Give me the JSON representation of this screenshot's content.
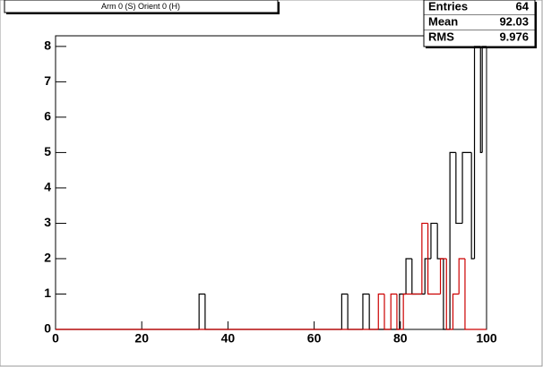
{
  "chart_data": {
    "type": "histogram",
    "title": "Arm 0 (S) Orient 0 (H)",
    "stats": {
      "labels": [
        "Entries",
        "Mean",
        "RMS"
      ],
      "values": [
        64,
        92.03,
        9.976
      ]
    },
    "xlim": [
      0,
      100
    ],
    "ylim": [
      0,
      8.3
    ],
    "xticks": [
      0,
      20,
      40,
      60,
      80,
      100
    ],
    "yticks": [
      0,
      1,
      2,
      3,
      4,
      5,
      6,
      7,
      8
    ],
    "series": [
      {
        "color": "#000000",
        "bins": [
          0,
          33.3,
          34.7,
          66.4,
          67.8,
          71.3,
          72.8,
          79.8,
          81.3,
          82.7,
          85.7,
          87.1,
          88.6,
          90.0,
          91.5,
          92.9,
          94.4,
          96.5,
          97.2,
          98.6,
          99.0,
          100
        ],
        "values": [
          0,
          1,
          0,
          1,
          0,
          1,
          0,
          1,
          2,
          1,
          2,
          3,
          2,
          0,
          5,
          3,
          5,
          2,
          8,
          5,
          8
        ]
      },
      {
        "color": "#cc0000",
        "bins": [
          0,
          74.9,
          76.3,
          77.8,
          79.2,
          80.7,
          83.6,
          85.0,
          86.4,
          89.3,
          90.7,
          92.2,
          93.6,
          95.0,
          100
        ],
        "values": [
          0,
          1,
          0,
          1,
          0,
          1,
          1,
          3,
          1,
          2,
          0,
          1,
          2,
          0
        ]
      }
    ]
  }
}
